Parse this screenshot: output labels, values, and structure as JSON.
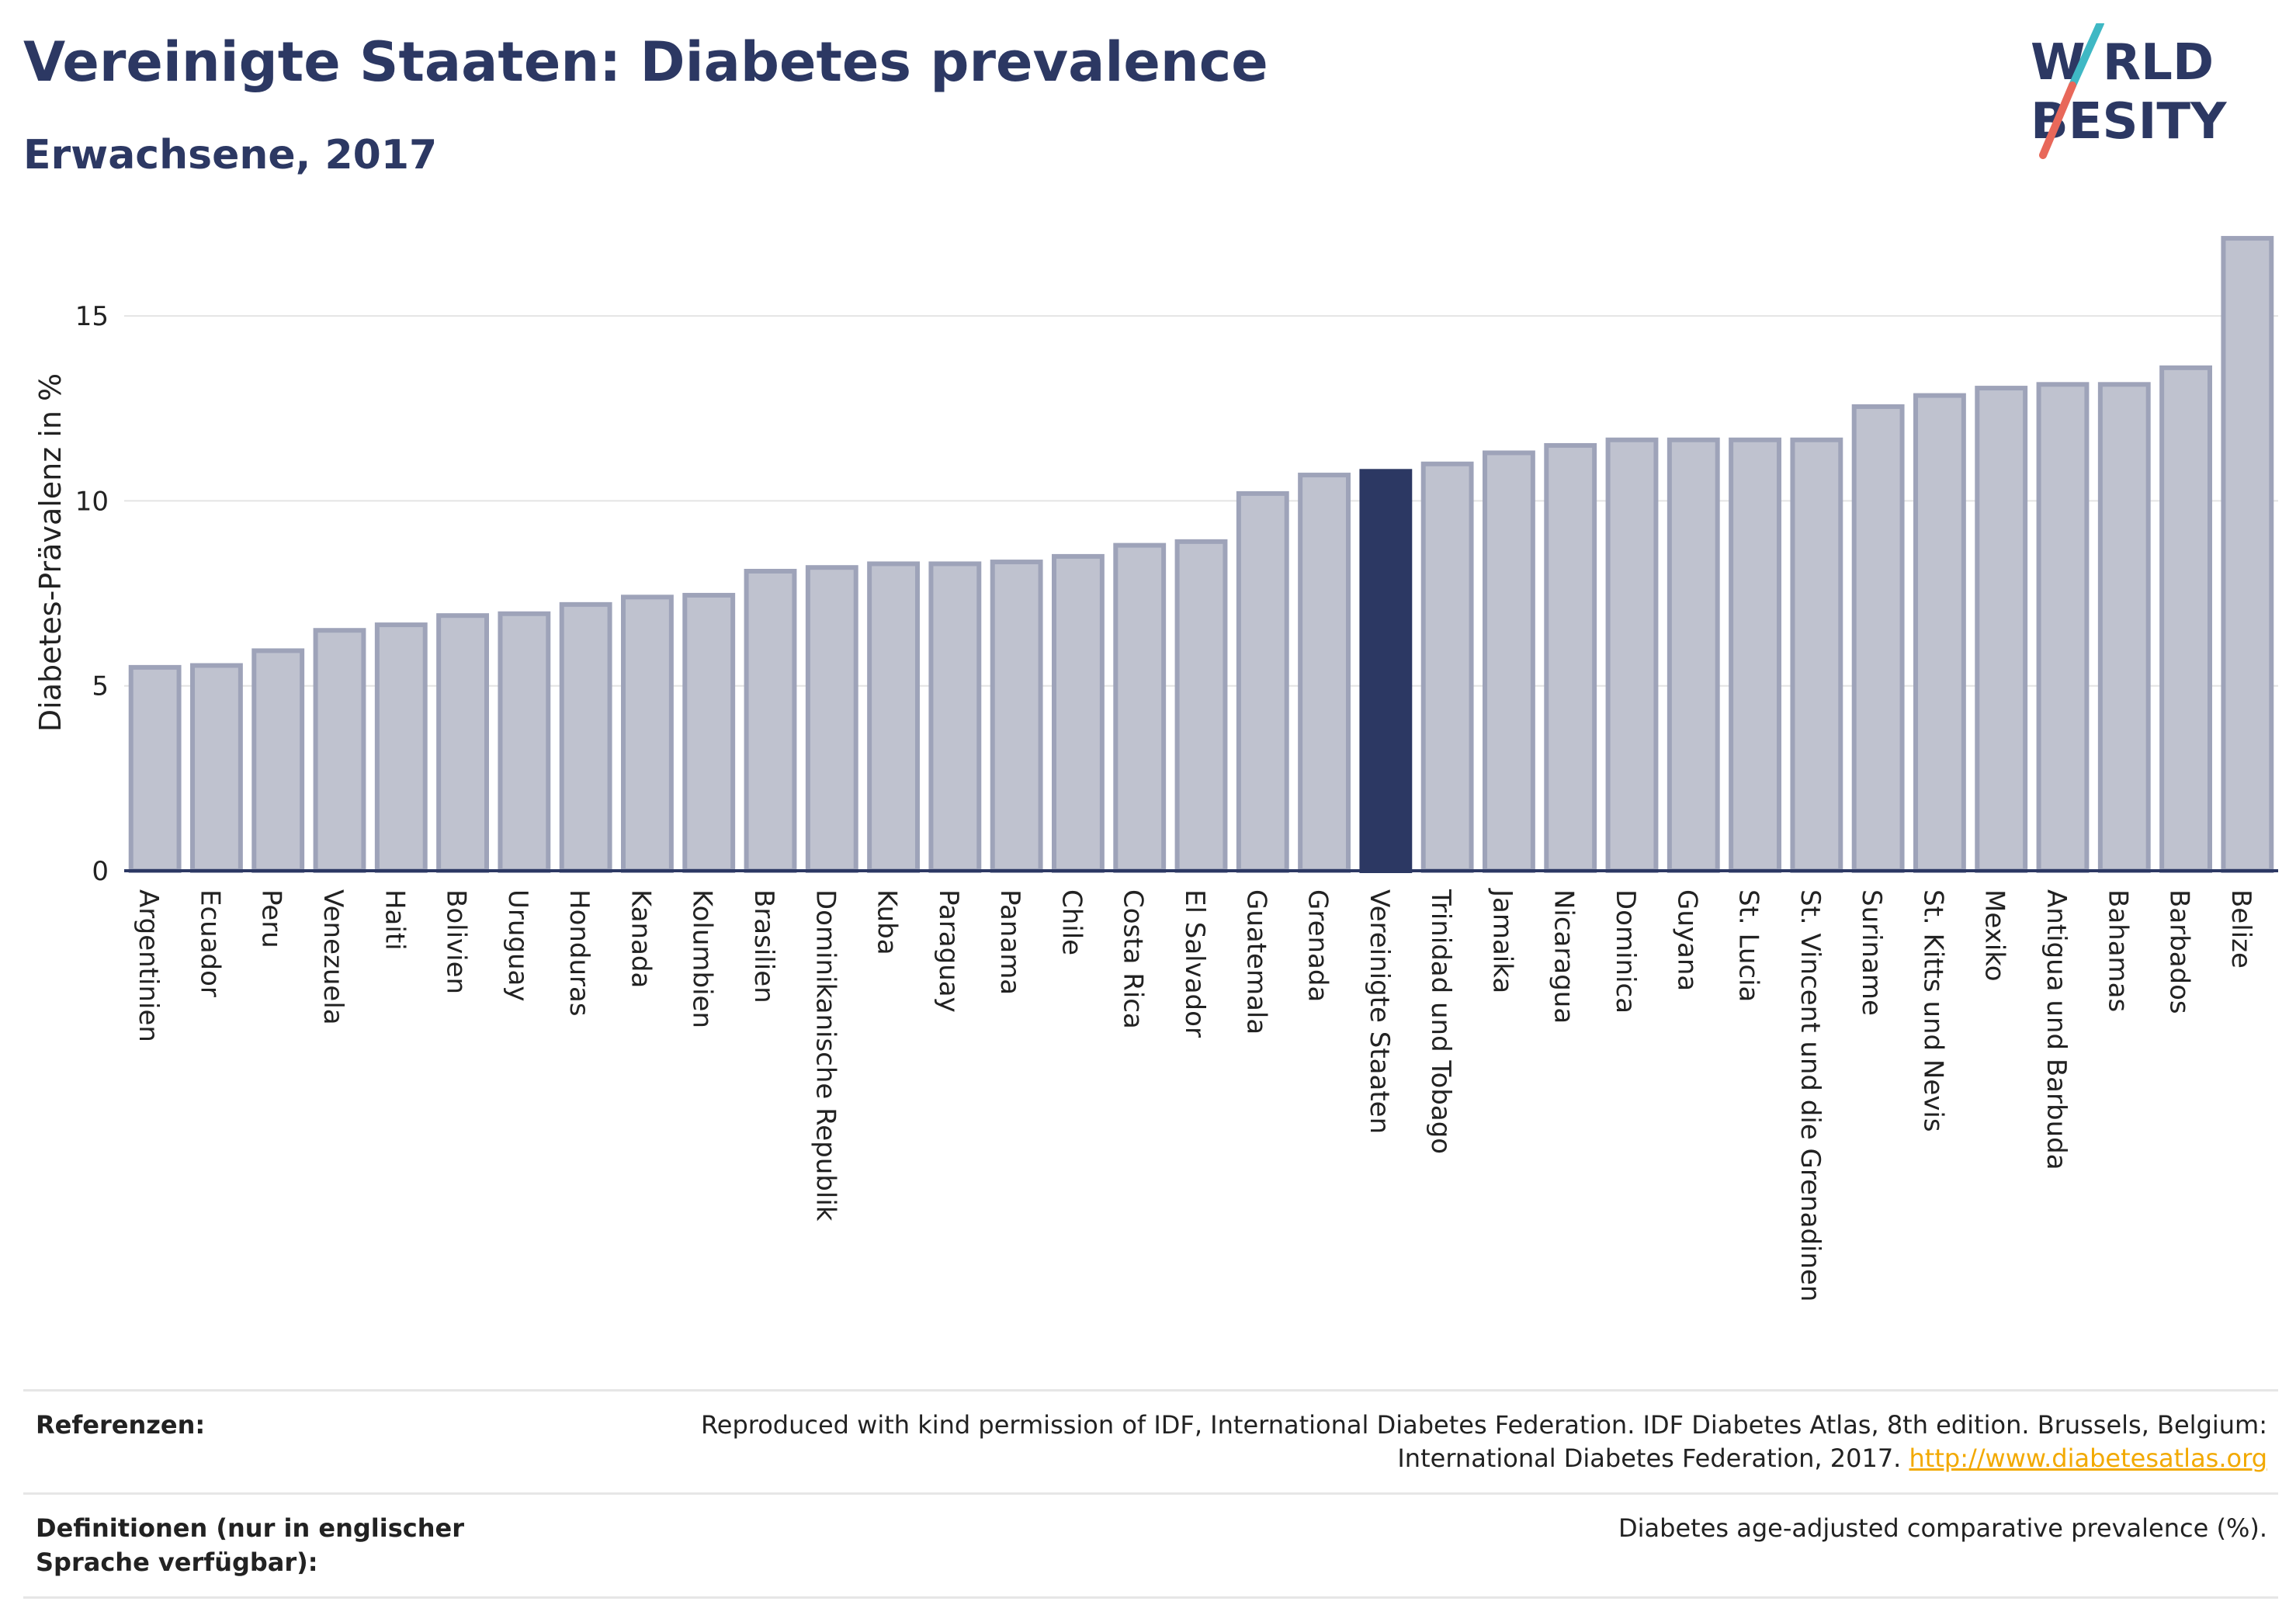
{
  "header": {
    "title": "Vereinigte Staaten: Diabetes prevalence",
    "subtitle": "Erwachsene, 2017"
  },
  "logo": {
    "line1": "W RLD",
    "line2": " BESITY",
    "colors": {
      "text": "#2c3863",
      "slash_top": "#3fb8c4",
      "slash_bottom": "#e8685a"
    }
  },
  "chart_data": {
    "type": "bar",
    "title": "",
    "xlabel": "",
    "ylabel": "Diabetes-Prävalenz in %",
    "ylim": [
      0,
      17.5
    ],
    "yticks": [
      0,
      5,
      10,
      15
    ],
    "grid": true,
    "highlight": "Vereinigte Staaten",
    "colors": {
      "bar": "#bfc2cf",
      "bar_edge": "#9ea3b9",
      "highlight": "#2c3863"
    },
    "categories": [
      "Argentinien",
      "Ecuador",
      "Peru",
      "Venezuela",
      "Haiti",
      "Bolivien",
      "Uruguay",
      "Honduras",
      "Kanada",
      "Kolumbien",
      "Brasilien",
      "Dominikanische Republik",
      "Kuba",
      "Paraguay",
      "Panama",
      "Chile",
      "Costa Rica",
      "El Salvador",
      "Guatemala",
      "Grenada",
      "Vereinigte Staaten",
      "Trinidad und Tobago",
      "Jamaika",
      "Nicaragua",
      "Dominica",
      "Guyana",
      "St. Lucia",
      "St. Vincent und die Grenadinen",
      "Suriname",
      "St. Kitts und Nevis",
      "Mexiko",
      "Antigua und Barbuda",
      "Bahamas",
      "Barbados",
      "Belize"
    ],
    "values": [
      5.5,
      5.55,
      5.95,
      6.5,
      6.65,
      6.9,
      6.95,
      7.2,
      7.4,
      7.45,
      8.1,
      8.2,
      8.3,
      8.3,
      8.35,
      8.5,
      8.8,
      8.9,
      10.2,
      10.7,
      10.8,
      11.0,
      11.3,
      11.5,
      11.65,
      11.65,
      11.65,
      11.65,
      12.55,
      12.85,
      13.05,
      13.15,
      13.15,
      13.6,
      17.1
    ]
  },
  "footer": {
    "references_label": "Referenzen:",
    "references_text": "Reproduced with kind permission of IDF, International Diabetes Federation. IDF Diabetes Atlas, 8th edition. Brussels, Belgium: International Diabetes Federation, 2017.",
    "references_link": "http://www.diabetesatlas.org",
    "definitions_label": "Definitionen (nur in englischer Sprache verfügbar):",
    "definitions_text": "Diabetes age-adjusted comparative prevalence (%)."
  }
}
